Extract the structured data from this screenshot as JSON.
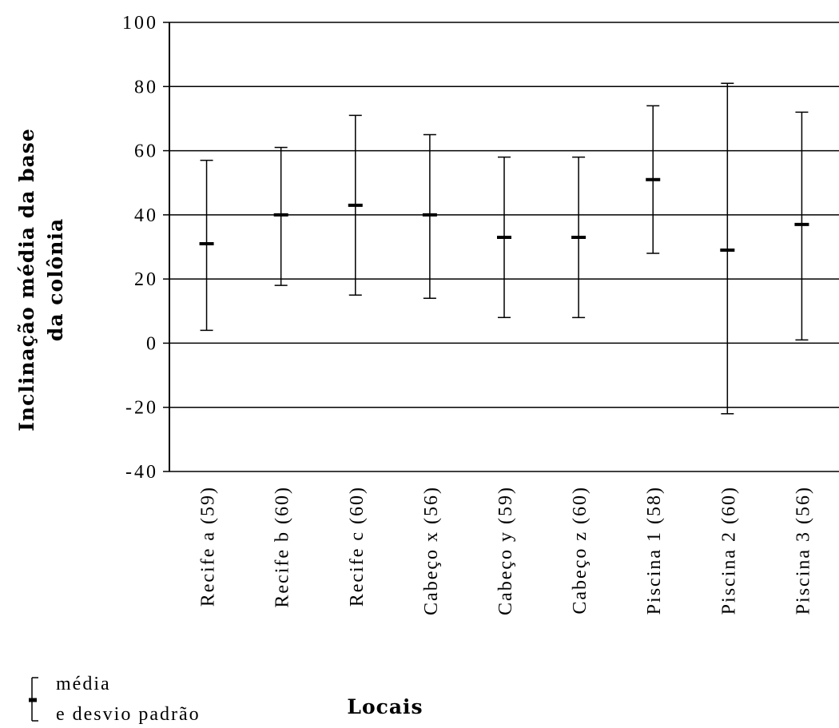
{
  "chart_data": {
    "type": "error-bar",
    "ylabel_lines": [
      "Inclinação média da base",
      "da colônia"
    ],
    "xlabel": "Locais",
    "ylim": [
      -40,
      100
    ],
    "yticks": [
      -40,
      -20,
      0,
      20,
      40,
      60,
      80,
      100
    ],
    "grid": true,
    "categories": [
      "Recife a (59)",
      "Recife b (60)",
      "Recife c (60)",
      "Cabeço x (56)",
      "Cabeço y (59)",
      "Cabeço z (60)",
      "Piscina 1 (58)",
      "Piscina 2 (60)",
      "Piscina 3 (56)"
    ],
    "mean": [
      31,
      40,
      43,
      40,
      33,
      33,
      51,
      29,
      37
    ],
    "upper": [
      57,
      61,
      71,
      65,
      58,
      58,
      74,
      81,
      72
    ],
    "lower": [
      4,
      18,
      15,
      14,
      8,
      8,
      28,
      -22,
      1
    ],
    "legend": {
      "position": "bottom-left",
      "lines": [
        "média",
        "e desvio padrão"
      ]
    }
  }
}
